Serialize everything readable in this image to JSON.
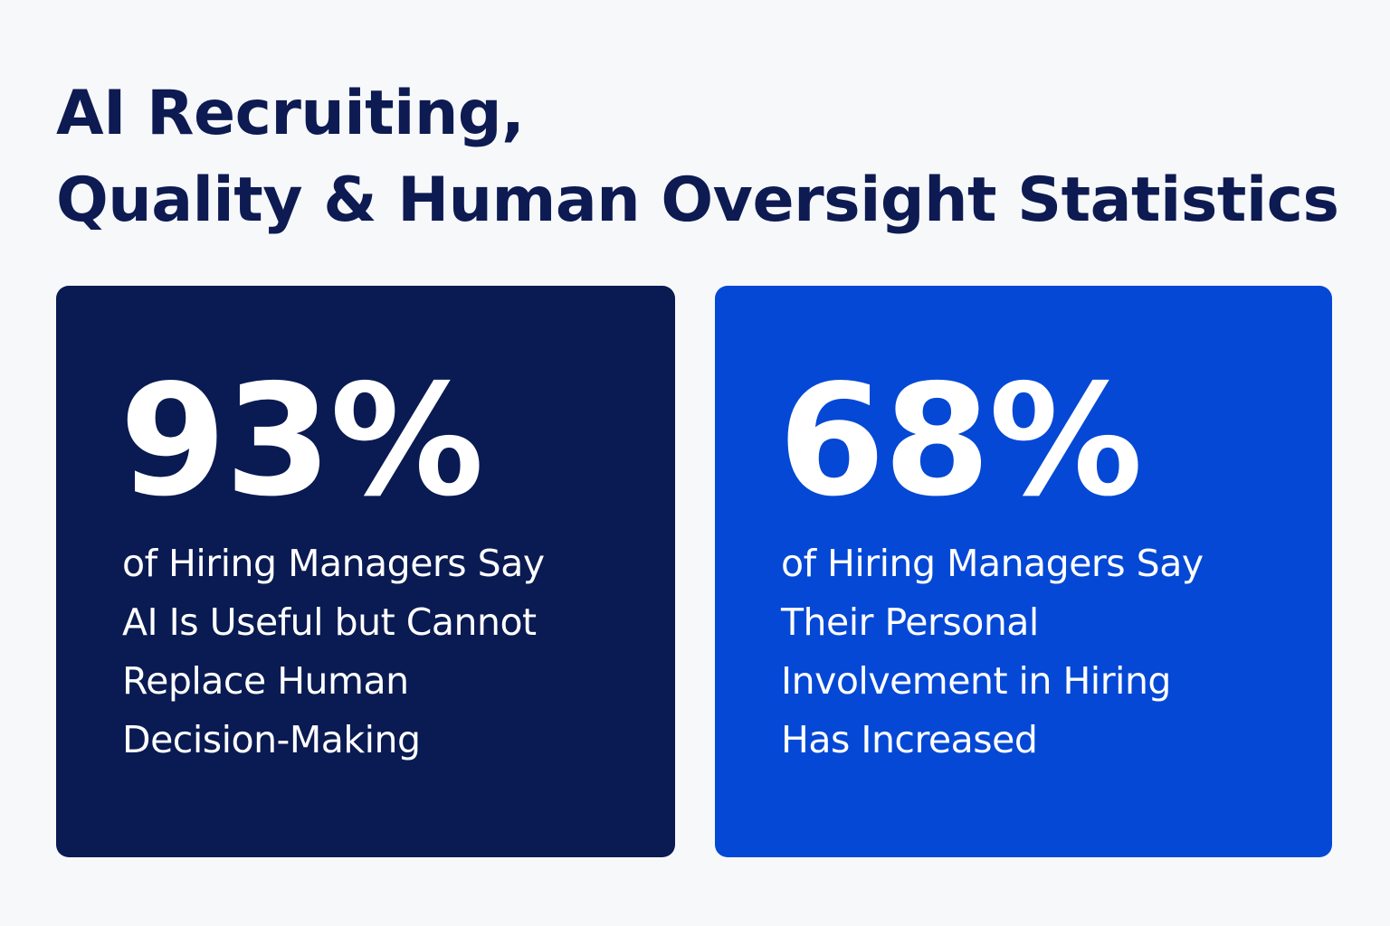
{
  "title": {
    "line1": "AI Recruiting,",
    "line2": "Quality & Human Oversight Statistics"
  },
  "colors": {
    "background": "#f7f8fa",
    "title": "#0d1b52",
    "card_left": "#0a1a52",
    "card_right": "#0548d6",
    "card_text": "#ffffff"
  },
  "stats": [
    {
      "value": "93%",
      "description": [
        "of Hiring Managers Say",
        "AI Is Useful but Cannot",
        "Replace Human",
        "Decision-Making"
      ]
    },
    {
      "value": "68%",
      "description": [
        "of Hiring Managers Say",
        "Their Personal",
        "Involvement in Hiring",
        "Has Increased"
      ]
    }
  ]
}
